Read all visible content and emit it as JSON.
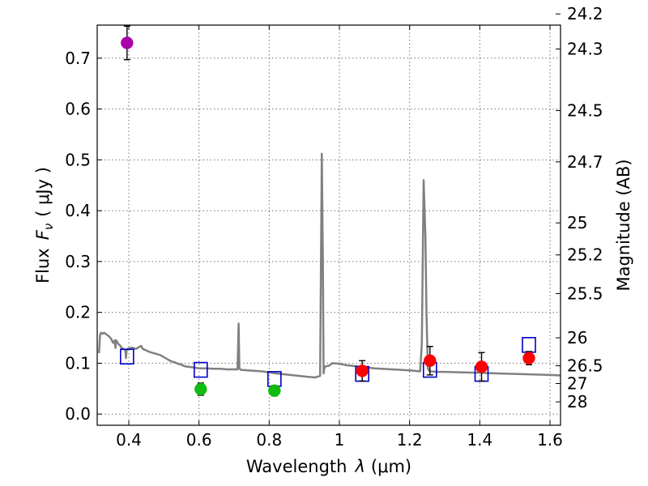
{
  "chart_data": {
    "type": "scatter",
    "xlabel_main": "Wavelength",
    "xlabel_sym": "λ",
    "xlabel_unit": "(μm)",
    "ylabel_main": "Flux",
    "ylabel_sym": "F",
    "ylabel_sub": "ν",
    "ylabel_unit": "( μJy )",
    "y2label": "Magnitude (AB)",
    "xlim": [
      0.31,
      1.63
    ],
    "ylim": [
      -0.022,
      0.765
    ],
    "grid": true,
    "x_ticks": [
      0.4,
      0.6,
      0.8,
      1.0,
      1.2,
      1.4,
      1.6
    ],
    "x_tick_labels": [
      "0.4",
      "0.6",
      "0.8",
      "1",
      "1.2",
      "1.4",
      "1.6"
    ],
    "y_ticks": [
      0.0,
      0.1,
      0.2,
      0.3,
      0.4,
      0.5,
      0.6,
      0.7
    ],
    "y_tick_labels": [
      "0.0",
      "0.1",
      "0.2",
      "0.3",
      "0.4",
      "0.5",
      "0.6",
      "0.7"
    ],
    "y2_ticks": [
      {
        "label": "24.2",
        "flux": 0.787
      },
      {
        "label": "24.3",
        "flux": 0.718
      },
      {
        "label": "24.5",
        "flux": 0.597
      },
      {
        "label": "24.7",
        "flux": 0.496
      },
      {
        "label": "25",
        "flux": 0.376
      },
      {
        "label": "25.2",
        "flux": 0.313
      },
      {
        "label": "25.5",
        "flux": 0.237
      },
      {
        "label": "26",
        "flux": 0.15
      },
      {
        "label": "26.5",
        "flux": 0.095
      },
      {
        "label": "27",
        "flux": 0.06
      },
      {
        "label": "28",
        "flux": 0.024
      }
    ],
    "series": [
      {
        "name": "model spectrum",
        "kind": "line",
        "color": "#808080",
        "x": [
          0.315,
          0.318,
          0.321,
          0.325,
          0.33,
          0.335,
          0.34,
          0.345,
          0.35,
          0.355,
          0.36,
          0.362,
          0.364,
          0.367,
          0.37,
          0.375,
          0.38,
          0.385,
          0.39,
          0.392,
          0.394,
          0.396,
          0.4,
          0.41,
          0.42,
          0.43,
          0.435,
          0.44,
          0.45,
          0.46,
          0.47,
          0.48,
          0.49,
          0.5,
          0.51,
          0.52,
          0.53,
          0.54,
          0.55,
          0.56,
          0.58,
          0.6,
          0.62,
          0.64,
          0.66,
          0.68,
          0.7,
          0.71,
          0.713,
          0.715,
          0.717,
          0.72,
          0.74,
          0.78,
          0.82,
          0.86,
          0.9,
          0.93,
          0.945,
          0.95,
          0.953,
          0.955,
          0.957,
          0.96,
          0.97,
          0.98,
          1.0,
          1.02,
          1.05,
          1.1,
          1.15,
          1.2,
          1.23,
          1.235,
          1.24,
          1.245,
          1.248,
          1.252,
          1.256,
          1.26,
          1.28,
          1.3,
          1.35,
          1.4,
          1.45,
          1.5,
          1.55,
          1.6,
          1.63
        ],
        "y": [
          0.12,
          0.155,
          0.16,
          0.158,
          0.16,
          0.157,
          0.155,
          0.152,
          0.148,
          0.14,
          0.145,
          0.13,
          0.145,
          0.142,
          0.138,
          0.135,
          0.13,
          0.128,
          0.126,
          0.11,
          0.127,
          0.128,
          0.129,
          0.131,
          0.128,
          0.132,
          0.134,
          0.128,
          0.125,
          0.122,
          0.12,
          0.118,
          0.116,
          0.112,
          0.108,
          0.104,
          0.102,
          0.099,
          0.097,
          0.094,
          0.092,
          0.09,
          0.09,
          0.089,
          0.089,
          0.088,
          0.088,
          0.088,
          0.178,
          0.091,
          0.088,
          0.087,
          0.086,
          0.084,
          0.08,
          0.077,
          0.074,
          0.072,
          0.075,
          0.512,
          0.3,
          0.08,
          0.09,
          0.094,
          0.095,
          0.1,
          0.099,
          0.096,
          0.094,
          0.09,
          0.088,
          0.086,
          0.084,
          0.14,
          0.46,
          0.35,
          0.2,
          0.09,
          0.085,
          0.084,
          0.083,
          0.083,
          0.082,
          0.081,
          0.08,
          0.079,
          0.078,
          0.077,
          0.076
        ]
      },
      {
        "name": "model photometry",
        "kind": "open-square",
        "color": "#0000cc",
        "x": [
          0.395,
          0.605,
          0.815,
          1.065,
          1.258,
          1.405,
          1.54
        ],
        "y": [
          0.113,
          0.087,
          0.069,
          0.079,
          0.087,
          0.079,
          0.136
        ]
      },
      {
        "name": "violet band",
        "kind": "filled-circle",
        "color": "#aa00aa",
        "x": [
          0.395
        ],
        "y": [
          0.73
        ],
        "yerr": [
          0.033
        ]
      },
      {
        "name": "green bands",
        "kind": "filled-circle",
        "color": "#11bb11",
        "x": [
          0.605,
          0.815
        ],
        "y": [
          0.049,
          0.046
        ],
        "yerr": [
          0.012,
          0.01
        ]
      },
      {
        "name": "red bands",
        "kind": "filled-circle",
        "color": "#ff0000",
        "x": [
          1.065,
          1.258,
          1.405,
          1.54
        ],
        "y": [
          0.085,
          0.105,
          0.093,
          0.11
        ],
        "yerr": [
          0.02,
          0.028,
          0.028,
          0.013
        ]
      }
    ]
  }
}
